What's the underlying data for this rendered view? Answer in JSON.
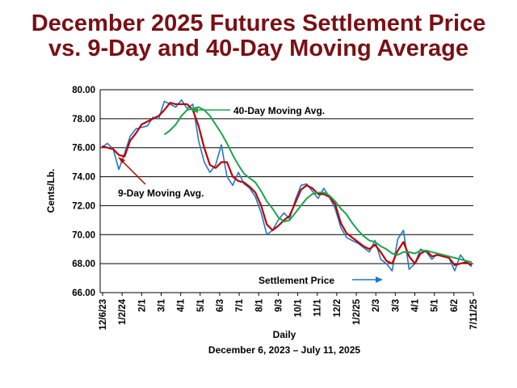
{
  "title_line1": "December 2025 Futures Settlement Price",
  "title_line2": "vs. 9-Day and 40-Day Moving Average",
  "colors": {
    "title": "#7a1014",
    "settlement": "#1f77c8",
    "ma9": "#c00000",
    "ma40": "#19a64b"
  },
  "chart_data": {
    "type": "line",
    "ylabel": "Cents/Lb.",
    "xlabel": "Daily",
    "xlabel2": "December 6, 2023 – July 11, 2025",
    "ylim": [
      66,
      80
    ],
    "yticks": [
      "66.00",
      "68.00",
      "70.00",
      "72.00",
      "74.00",
      "76.00",
      "78.00",
      "80.00"
    ],
    "xticks": [
      "12/6/23",
      "1/2/24",
      "2/1",
      "3/1",
      "4/1",
      "5/1",
      "6/3",
      "7/1",
      "8/1",
      "9/3",
      "10/1",
      "11/1",
      "12/2",
      "1/2/25",
      "2/3",
      "3/3",
      "4/1",
      "5/1",
      "6/2",
      "7/11/25"
    ],
    "grid": true,
    "annotations": [
      {
        "text": "40-Day Moving Avg.",
        "series": "40-Day Moving Avg."
      },
      {
        "text": "9-Day Moving Avg.",
        "series": "9-Day Moving Avg."
      },
      {
        "text": "Settlement Price",
        "series": "Settlement Price"
      }
    ],
    "series": [
      {
        "name": "Settlement Price",
        "values": [
          76.0,
          76.3,
          75.9,
          74.5,
          75.6,
          76.8,
          77.3,
          77.4,
          77.5,
          78.1,
          78.0,
          79.2,
          79.0,
          78.8,
          79.3,
          78.7,
          79.0,
          76.5,
          75.0,
          74.3,
          74.8,
          76.2,
          74.0,
          73.4,
          74.3,
          73.5,
          73.2,
          72.6,
          71.5,
          70.0,
          70.3,
          71.0,
          71.5,
          71.1,
          72.4,
          73.4,
          73.5,
          73.0,
          72.5,
          73.2,
          72.6,
          71.8,
          70.5,
          69.8,
          69.6,
          69.4,
          69.1,
          68.8,
          69.6,
          68.3,
          68.0,
          67.5,
          69.7,
          70.3,
          67.6,
          68.0,
          69.0,
          68.8,
          68.3,
          68.7,
          68.6,
          68.4,
          67.5,
          68.6,
          68.1,
          67.8
        ]
      },
      {
        "name": "9-Day Moving Avg.",
        "values": [
          76.1,
          76.0,
          75.9,
          75.5,
          75.4,
          76.5,
          77.0,
          77.6,
          77.8,
          78.0,
          78.2,
          78.6,
          79.1,
          79.0,
          79.0,
          79.0,
          78.6,
          77.5,
          76.0,
          74.8,
          74.6,
          75.0,
          75.0,
          74.0,
          73.7,
          73.6,
          73.3,
          72.9,
          72.0,
          70.7,
          70.3,
          70.6,
          71.0,
          71.3,
          72.2,
          73.1,
          73.4,
          73.2,
          72.8,
          72.8,
          72.6,
          72.1,
          70.8,
          70.1,
          69.8,
          69.5,
          69.2,
          69.0,
          69.3,
          68.8,
          68.2,
          68.0,
          68.9,
          69.5,
          68.5,
          68.0,
          68.7,
          68.9,
          68.5,
          68.6,
          68.5,
          68.4,
          67.9,
          68.0,
          68.1,
          67.9
        ]
      },
      {
        "name": "40-Day Moving Avg.",
        "values": [
          null,
          null,
          null,
          null,
          null,
          null,
          null,
          null,
          null,
          null,
          null,
          76.9,
          77.2,
          77.6,
          78.2,
          78.6,
          78.7,
          78.8,
          78.6,
          78.2,
          77.6,
          77.0,
          76.3,
          75.5,
          74.8,
          74.2,
          73.9,
          73.6,
          73.0,
          72.3,
          71.8,
          71.2,
          70.9,
          71.0,
          71.5,
          72.0,
          72.5,
          72.8,
          72.9,
          72.9,
          72.7,
          72.3,
          71.8,
          71.4,
          70.8,
          70.3,
          69.9,
          69.6,
          69.5,
          69.2,
          69.0,
          68.7,
          68.6,
          68.8,
          68.8,
          68.7,
          68.9,
          68.9,
          68.8,
          68.7,
          68.6,
          68.5,
          68.4,
          68.3,
          68.2,
          68.1
        ]
      }
    ]
  }
}
